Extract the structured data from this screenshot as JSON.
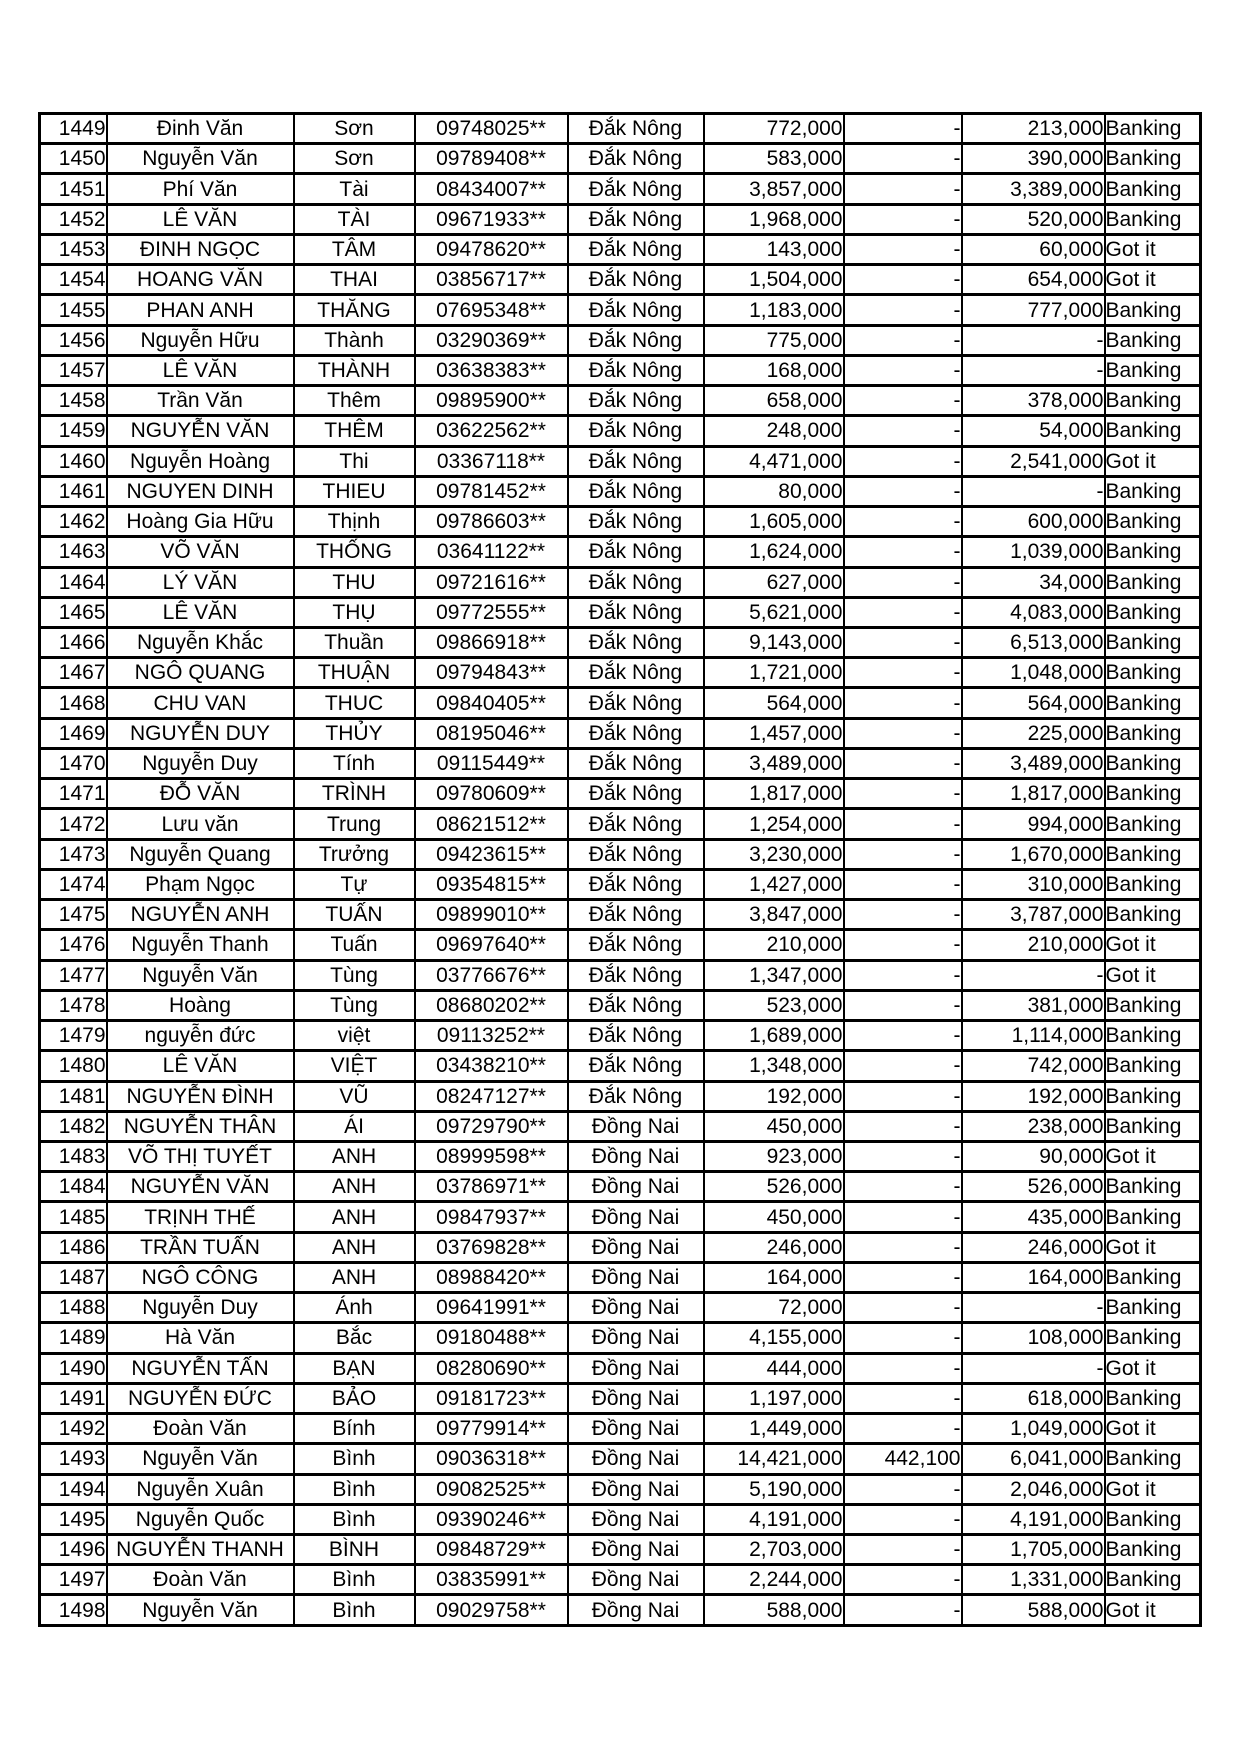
{
  "page": {
    "background": "#ffffff",
    "table_border_color": "#000000",
    "text_color": "#000000"
  },
  "table": {
    "rows": [
      [
        "1449",
        "Đinh Văn",
        "Sơn",
        "09748025**",
        "Đắk Nông",
        "772,000",
        "-",
        "213,000",
        "Banking"
      ],
      [
        "1450",
        "Nguyễn Văn",
        "Sơn",
        "09789408**",
        "Đắk Nông",
        "583,000",
        "-",
        "390,000",
        "Banking"
      ],
      [
        "1451",
        "Phí Văn",
        "Tài",
        "08434007**",
        "Đắk Nông",
        "3,857,000",
        "-",
        "3,389,000",
        "Banking"
      ],
      [
        "1452",
        "LÊ VĂN",
        "TÀI",
        "09671933**",
        "Đắk Nông",
        "1,968,000",
        "-",
        "520,000",
        "Banking"
      ],
      [
        "1453",
        "ĐINH NGỌC",
        "TÂM",
        "09478620**",
        "Đắk Nông",
        "143,000",
        "-",
        "60,000",
        "Got it"
      ],
      [
        "1454",
        "HOANG VĂN",
        "THAI",
        "03856717**",
        "Đắk Nông",
        "1,504,000",
        "-",
        "654,000",
        "Got it"
      ],
      [
        "1455",
        "PHAN ANH",
        "THĂNG",
        "07695348**",
        "Đắk Nông",
        "1,183,000",
        "-",
        "777,000",
        "Banking"
      ],
      [
        "1456",
        "Nguyễn Hữu",
        "Thành",
        "03290369**",
        "Đắk Nông",
        "775,000",
        "-",
        "-",
        "Banking"
      ],
      [
        "1457",
        "LÊ VĂN",
        "THÀNH",
        "03638383**",
        "Đắk Nông",
        "168,000",
        "-",
        "-",
        "Banking"
      ],
      [
        "1458",
        "Trần Văn",
        "Thêm",
        "09895900**",
        "Đắk Nông",
        "658,000",
        "-",
        "378,000",
        "Banking"
      ],
      [
        "1459",
        "NGUYỄN VĂN",
        "THÊM",
        "03622562**",
        "Đắk Nông",
        "248,000",
        "-",
        "54,000",
        "Banking"
      ],
      [
        "1460",
        "Nguyễn Hoàng",
        "Thi",
        "03367118**",
        "Đắk Nông",
        "4,471,000",
        "-",
        "2,541,000",
        "Got it"
      ],
      [
        "1461",
        "NGUYEN DINH",
        "THIEU",
        "09781452**",
        "Đắk Nông",
        "80,000",
        "-",
        "-",
        "Banking"
      ],
      [
        "1462",
        "Hoàng Gia Hữu",
        "Thịnh",
        "09786603**",
        "Đắk Nông",
        "1,605,000",
        "-",
        "600,000",
        "Banking"
      ],
      [
        "1463",
        "VÕ VĂN",
        "THỐNG",
        "03641122**",
        "Đắk Nông",
        "1,624,000",
        "-",
        "1,039,000",
        "Banking"
      ],
      [
        "1464",
        "LÝ VĂN",
        "THU",
        "09721616**",
        "Đắk Nông",
        "627,000",
        "-",
        "34,000",
        "Banking"
      ],
      [
        "1465",
        "LÊ VĂN",
        "THỤ",
        "09772555**",
        "Đắk Nông",
        "5,621,000",
        "-",
        "4,083,000",
        "Banking"
      ],
      [
        "1466",
        "Nguyễn Khắc",
        "Thuần",
        "09866918**",
        "Đắk Nông",
        "9,143,000",
        "-",
        "6,513,000",
        "Banking"
      ],
      [
        "1467",
        "NGÔ QUANG",
        "THUẬN",
        "09794843**",
        "Đắk Nông",
        "1,721,000",
        "-",
        "1,048,000",
        "Banking"
      ],
      [
        "1468",
        "CHU VAN",
        "THUC",
        "09840405**",
        "Đắk Nông",
        "564,000",
        "-",
        "564,000",
        "Banking"
      ],
      [
        "1469",
        "NGUYỄN DUY",
        "THỦY",
        "08195046**",
        "Đắk Nông",
        "1,457,000",
        "-",
        "225,000",
        "Banking"
      ],
      [
        "1470",
        "Nguyễn Duy",
        "Tính",
        "09115449**",
        "Đắk Nông",
        "3,489,000",
        "-",
        "3,489,000",
        "Banking"
      ],
      [
        "1471",
        "ĐỖ VĂN",
        "TRÌNH",
        "09780609**",
        "Đắk Nông",
        "1,817,000",
        "-",
        "1,817,000",
        "Banking"
      ],
      [
        "1472",
        "Lưu văn",
        "Trung",
        "08621512**",
        "Đắk Nông",
        "1,254,000",
        "-",
        "994,000",
        "Banking"
      ],
      [
        "1473",
        "Nguyễn Quang",
        "Trưởng",
        "09423615**",
        "Đắk Nông",
        "3,230,000",
        "-",
        "1,670,000",
        "Banking"
      ],
      [
        "1474",
        "Phạm Ngọc",
        "Tự",
        "09354815**",
        "Đắk Nông",
        "1,427,000",
        "-",
        "310,000",
        "Banking"
      ],
      [
        "1475",
        "NGUYỄN ANH",
        "TUẤN",
        "09899010**",
        "Đắk Nông",
        "3,847,000",
        "-",
        "3,787,000",
        "Banking"
      ],
      [
        "1476",
        "Nguyễn Thanh",
        "Tuấn",
        "09697640**",
        "Đắk Nông",
        "210,000",
        "-",
        "210,000",
        "Got it"
      ],
      [
        "1477",
        "Nguyễn Văn",
        "Tùng",
        "03776676**",
        "Đắk Nông",
        "1,347,000",
        "-",
        "-",
        "Got it"
      ],
      [
        "1478",
        "Hoàng",
        "Tùng",
        "08680202**",
        "Đắk Nông",
        "523,000",
        "-",
        "381,000",
        "Banking"
      ],
      [
        "1479",
        "nguyễn đức",
        "việt",
        "09113252**",
        "Đắk Nông",
        "1,689,000",
        "-",
        "1,114,000",
        "Banking"
      ],
      [
        "1480",
        "LÊ VĂN",
        "VIỆT",
        "03438210**",
        "Đắk Nông",
        "1,348,000",
        "-",
        "742,000",
        "Banking"
      ],
      [
        "1481",
        "NGUYỄN ĐÌNH",
        "VŨ",
        "08247127**",
        "Đắk Nông",
        "192,000",
        "-",
        "192,000",
        "Banking"
      ],
      [
        "1482",
        "NGUYỄN THÂN",
        "ÁI",
        "09729790**",
        "Đồng Nai",
        "450,000",
        "-",
        "238,000",
        "Banking"
      ],
      [
        "1483",
        "VÕ THỊ TUYẾT",
        "ANH",
        "08999598**",
        "Đồng Nai",
        "923,000",
        "-",
        "90,000",
        "Got it"
      ],
      [
        "1484",
        "NGUYỄN VĂN",
        "ANH",
        "03786971**",
        "Đồng Nai",
        "526,000",
        "-",
        "526,000",
        "Banking"
      ],
      [
        "1485",
        "TRỊNH THẾ",
        "ANH",
        "09847937**",
        "Đồng Nai",
        "450,000",
        "-",
        "435,000",
        "Banking"
      ],
      [
        "1486",
        "TRẦN TUẤN",
        "ANH",
        "03769828**",
        "Đồng Nai",
        "246,000",
        "-",
        "246,000",
        "Got it"
      ],
      [
        "1487",
        "NGÔ CÔNG",
        "ANH",
        "08988420**",
        "Đồng Nai",
        "164,000",
        "-",
        "164,000",
        "Banking"
      ],
      [
        "1488",
        "Nguyễn Duy",
        "Ánh",
        "09641991**",
        "Đồng Nai",
        "72,000",
        "-",
        "-",
        "Banking"
      ],
      [
        "1489",
        "Hà Văn",
        "Bắc",
        "09180488**",
        "Đồng Nai",
        "4,155,000",
        "-",
        "108,000",
        "Banking"
      ],
      [
        "1490",
        "NGUYỄN TẤN",
        "BẠN",
        "08280690**",
        "Đồng Nai",
        "444,000",
        "-",
        "-",
        "Got it"
      ],
      [
        "1491",
        "NGUYỄN ĐỨC",
        "BẢO",
        "09181723**",
        "Đồng Nai",
        "1,197,000",
        "-",
        "618,000",
        "Banking"
      ],
      [
        "1492",
        "Đoàn Văn",
        "Bính",
        "09779914**",
        "Đồng Nai",
        "1,449,000",
        "-",
        "1,049,000",
        "Got it"
      ],
      [
        "1493",
        "Nguyễn Văn",
        "Bình",
        "09036318**",
        "Đồng Nai",
        "14,421,000",
        "442,100",
        "6,041,000",
        "Banking"
      ],
      [
        "1494",
        "Nguyễn Xuân",
        "Bình",
        "09082525**",
        "Đồng Nai",
        "5,190,000",
        "-",
        "2,046,000",
        "Got it"
      ],
      [
        "1495",
        "Nguyễn Quốc",
        "Bình",
        "09390246**",
        "Đồng Nai",
        "4,191,000",
        "-",
        "4,191,000",
        "Banking"
      ],
      [
        "1496",
        "NGUYỄN THANH",
        "BÌNH",
        "09848729**",
        "Đồng Nai",
        "2,703,000",
        "-",
        "1,705,000",
        "Banking"
      ],
      [
        "1497",
        "Đoàn Văn",
        "Bình",
        "03835991**",
        "Đồng Nai",
        "2,244,000",
        "-",
        "1,331,000",
        "Banking"
      ],
      [
        "1498",
        "Nguyễn Văn",
        "Bình",
        "09029758**",
        "Đồng Nai",
        "588,000",
        "-",
        "588,000",
        "Got it"
      ]
    ]
  }
}
